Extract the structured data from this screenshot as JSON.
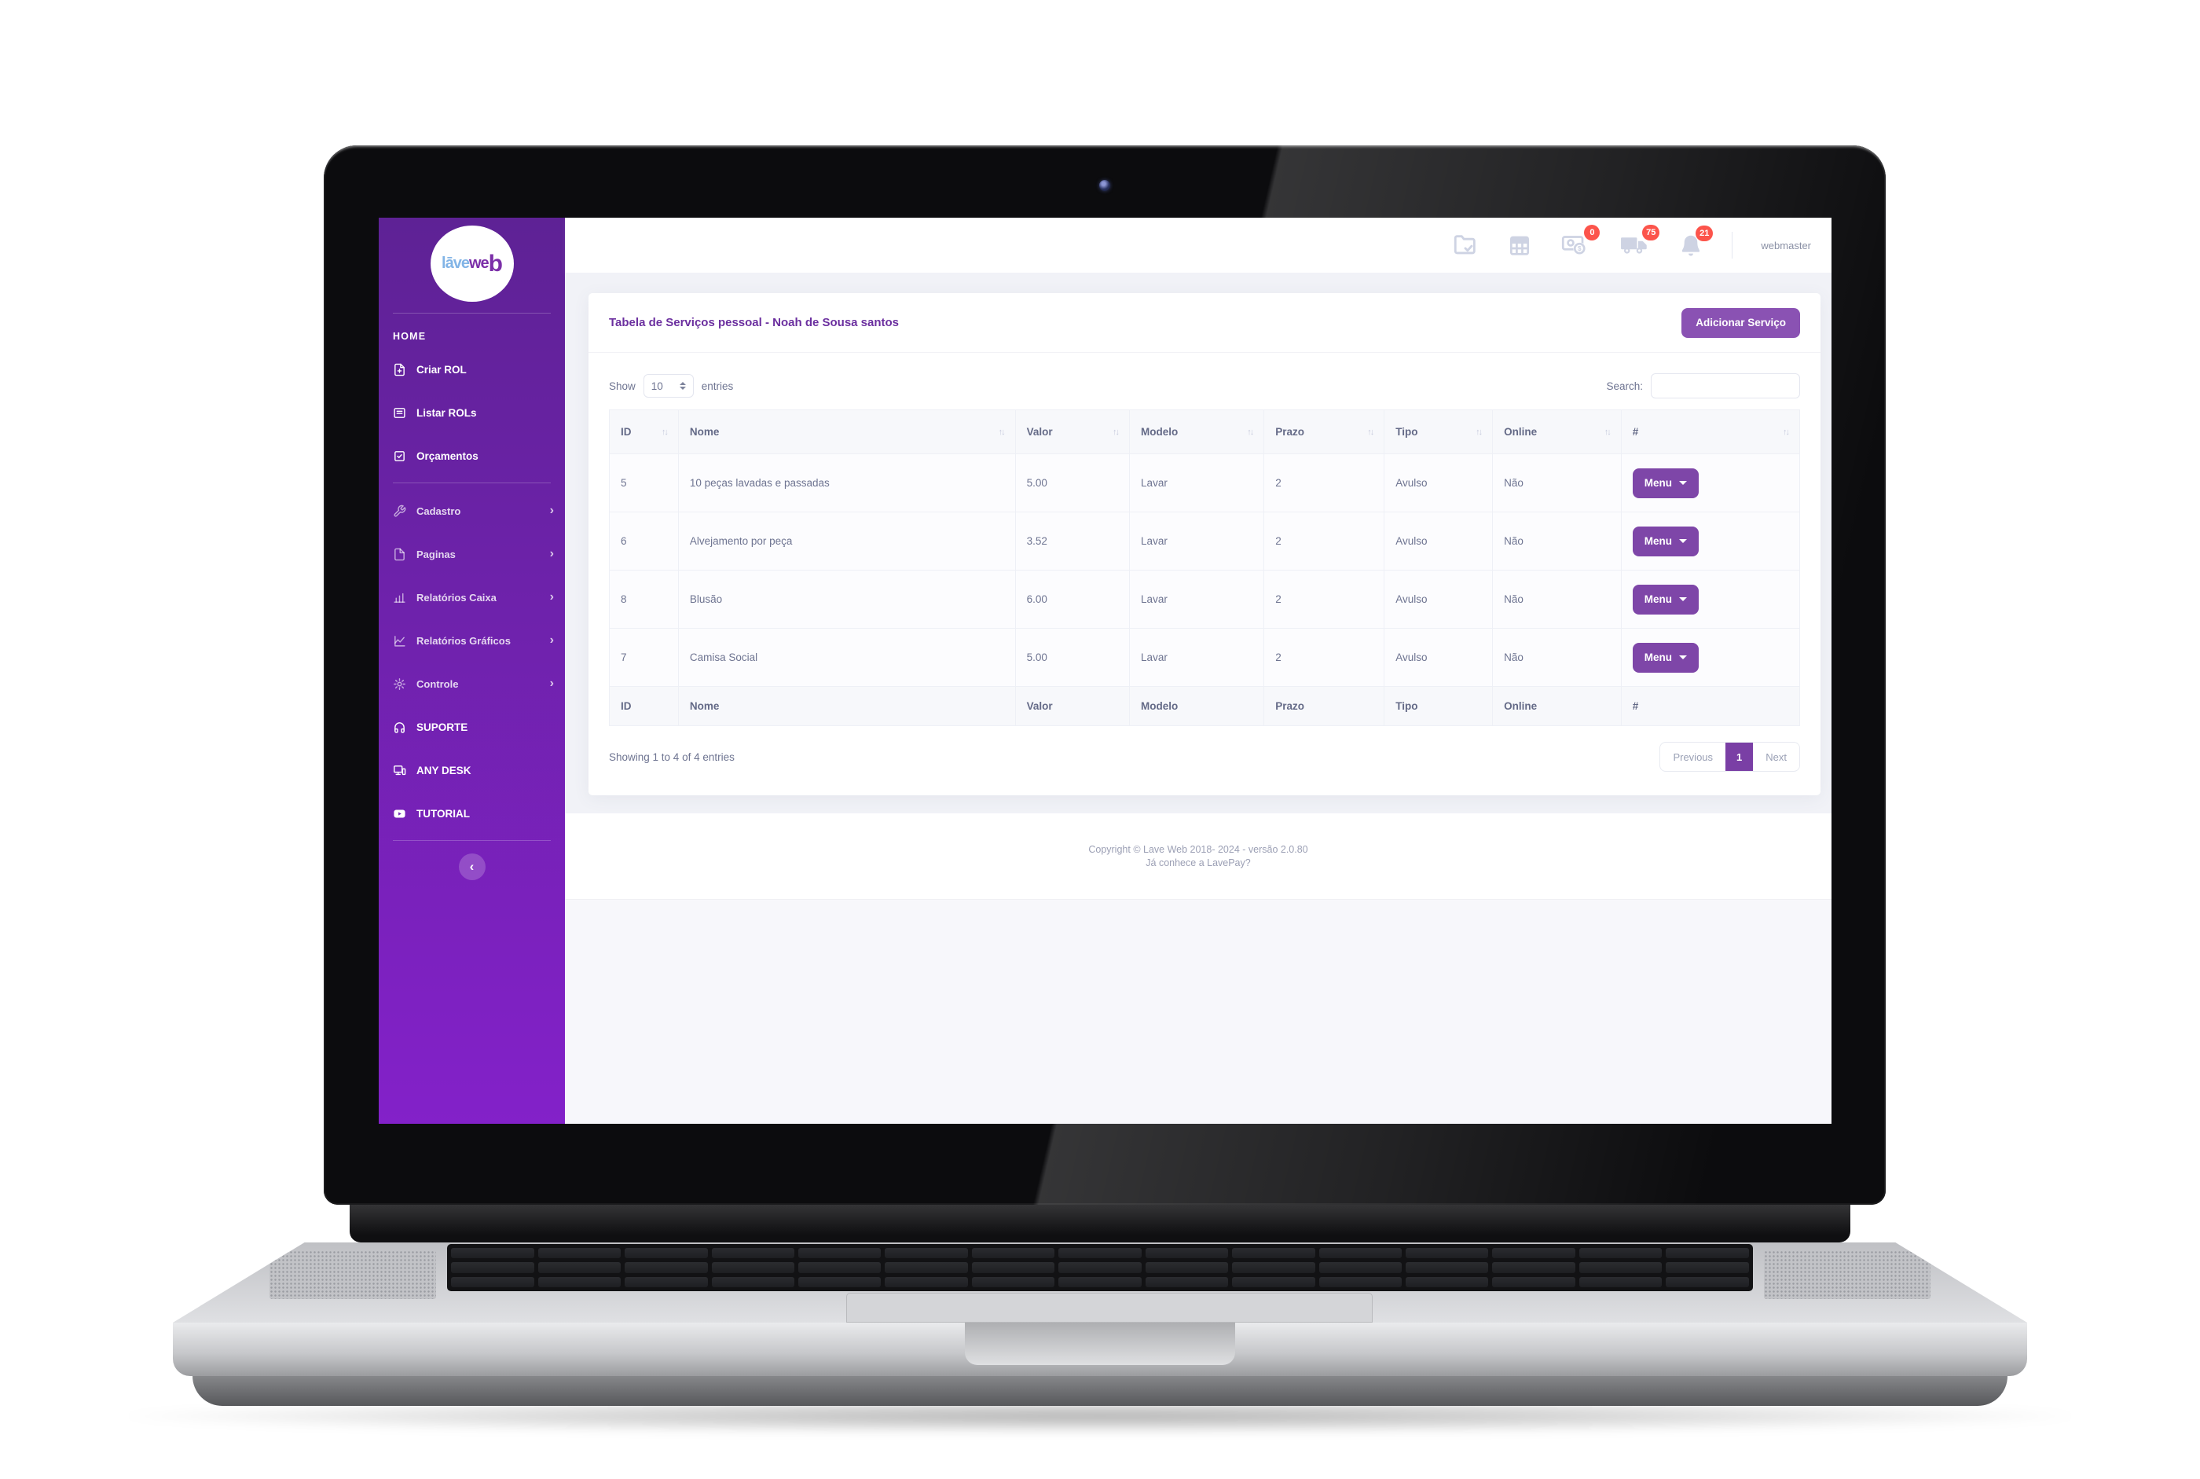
{
  "topbar": {
    "user": "webmaster",
    "icons": [
      {
        "name": "folder-check-icon",
        "badge": null
      },
      {
        "name": "table-grid-icon",
        "badge": null
      },
      {
        "name": "money-icon",
        "badge": "0"
      },
      {
        "name": "truck-icon",
        "badge": "75"
      },
      {
        "name": "bell-icon",
        "badge": "21"
      }
    ]
  },
  "sidebar": {
    "logo_blue": "lāve",
    "logo_purple": "we",
    "logo_big": "b",
    "home": "HOME",
    "items_main": [
      {
        "icon": "file-plus-icon",
        "label": "Criar ROL"
      },
      {
        "icon": "card-list-icon",
        "label": "Listar ROLs"
      },
      {
        "icon": "check-square-icon",
        "label": "Orçamentos"
      }
    ],
    "items_sub": [
      {
        "icon": "wrench-icon",
        "label": "Cadastro"
      },
      {
        "icon": "file-icon",
        "label": "Paginas"
      },
      {
        "icon": "bar-chart-icon",
        "label": "Relatórios Caixa"
      },
      {
        "icon": "line-chart-icon",
        "label": "Relatórios Gráficos"
      },
      {
        "icon": "gear-icon",
        "label": "Controle"
      }
    ],
    "items_bottom": [
      {
        "icon": "headphones-icon",
        "label": "SUPORTE"
      },
      {
        "icon": "monitor-icon",
        "label": "ANY DESK"
      },
      {
        "icon": "video-icon",
        "label": "TUTORIAL"
      }
    ]
  },
  "page": {
    "title": "Tabela de Serviços pessoal - Noah de Sousa santos",
    "add_button": "Adicionar Serviço",
    "show_label": "Show",
    "show_value": "10",
    "entries_label": "entries",
    "search_label": "Search:",
    "showing_text": "Showing 1 to 4 of 4 entries",
    "pagination": {
      "previous": "Previous",
      "current": "1",
      "next": "Next"
    }
  },
  "table": {
    "headers": [
      "ID",
      "Nome",
      "Valor",
      "Modelo",
      "Prazo",
      "Tipo",
      "Online",
      "#"
    ],
    "rows": [
      {
        "id": "5",
        "nome": "10 peças lavadas e passadas",
        "valor": "5.00",
        "modelo": "Lavar",
        "prazo": "2",
        "tipo": "Avulso",
        "online": "Não",
        "menu": "Menu"
      },
      {
        "id": "6",
        "nome": "Alvejamento por peça",
        "valor": "3.52",
        "modelo": "Lavar",
        "prazo": "2",
        "tipo": "Avulso",
        "online": "Não",
        "menu": "Menu"
      },
      {
        "id": "8",
        "nome": "Blusão",
        "valor": "6.00",
        "modelo": "Lavar",
        "prazo": "2",
        "tipo": "Avulso",
        "online": "Não",
        "menu": "Menu"
      },
      {
        "id": "7",
        "nome": "Camisa Social",
        "valor": "5.00",
        "modelo": "Lavar",
        "prazo": "2",
        "tipo": "Avulso",
        "online": "Não",
        "menu": "Menu"
      }
    ]
  },
  "footer": {
    "line1": "Copyright © Lave Web 2018- 2024 - versão 2.0.80",
    "line2": "Já conhece a LavePay?"
  },
  "colors": {
    "accent_purple": "#8a52b3",
    "menu_button_purple": "#7e46a8",
    "active_page_purple": "#7a3fa5",
    "sidebar_gradient_top": "#5e2295",
    "sidebar_gradient_bottom": "#8321c9",
    "badge_red": "#fc544b",
    "title_purple": "#6b2f9f",
    "logo_blue": "#82b4e6"
  }
}
